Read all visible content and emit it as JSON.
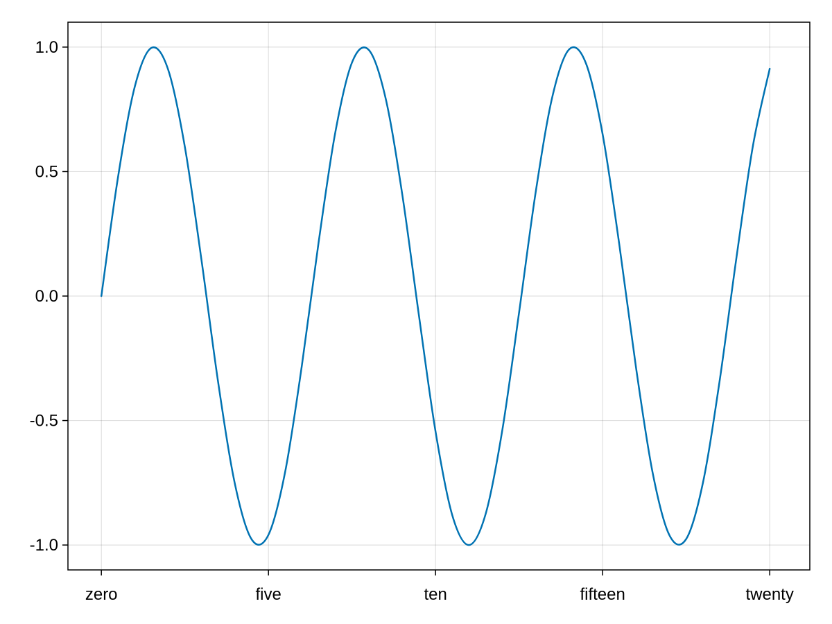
{
  "chart_data": {
    "type": "line",
    "title": "",
    "xlabel": "",
    "ylabel": "",
    "xlim": [
      -1,
      21.2
    ],
    "ylim": [
      -1.1,
      1.1
    ],
    "x_ticks": [
      {
        "value": 0,
        "label": "zero"
      },
      {
        "value": 5,
        "label": "five"
      },
      {
        "value": 10,
        "label": "ten"
      },
      {
        "value": 15,
        "label": "fifteen"
      },
      {
        "value": 20,
        "label": "twenty"
      }
    ],
    "y_ticks": [
      {
        "value": 1.0,
        "label": "1.0"
      },
      {
        "value": 0.5,
        "label": "0.5"
      },
      {
        "value": 0.0,
        "label": "0.0"
      },
      {
        "value": -0.5,
        "label": "-0.5"
      },
      {
        "value": -1.0,
        "label": "-1.0"
      }
    ],
    "grid": true,
    "legend": "none",
    "series": [
      {
        "color": "#0072b2",
        "x": [
          0,
          0.5,
          1,
          1.5,
          2,
          2.5,
          3,
          3.5,
          4,
          4.5,
          5,
          5.5,
          6,
          6.5,
          7,
          7.5,
          8,
          8.5,
          9,
          9.5,
          10,
          10.5,
          11,
          11.5,
          12,
          12.5,
          13,
          13.5,
          14,
          14.5,
          15,
          15.5,
          16,
          16.5,
          17,
          17.5,
          18,
          18.5,
          19,
          19.5,
          20
        ],
        "y": [
          0.0,
          0.479,
          0.841,
          0.997,
          0.909,
          0.598,
          0.141,
          -0.351,
          -0.757,
          -0.978,
          -0.959,
          -0.706,
          -0.279,
          0.215,
          0.657,
          0.938,
          0.989,
          0.798,
          0.412,
          -0.075,
          -0.544,
          -0.88,
          -1.0,
          -0.875,
          -0.537,
          -0.066,
          0.42,
          0.803,
          0.991,
          0.935,
          0.65,
          0.206,
          -0.288,
          -0.712,
          -0.961,
          -0.976,
          -0.751,
          -0.342,
          0.15,
          0.605,
          0.913
        ]
      }
    ]
  }
}
